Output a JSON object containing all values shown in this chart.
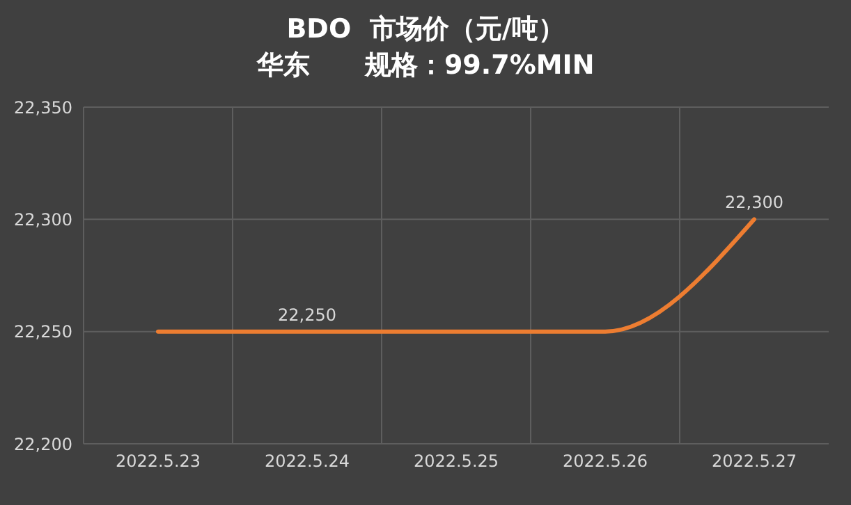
{
  "chart_data": {
    "type": "line",
    "title": "BDO  市场价（元/吨）",
    "subtitle": "华东      规格：99.7%MIN",
    "categories": [
      "2022.5.23",
      "2022.5.24",
      "2022.5.25",
      "2022.5.26",
      "2022.5.27"
    ],
    "series": [
      {
        "color": "#ed7d31",
        "values": [
          22250,
          22250,
          22250,
          22250,
          22300
        ],
        "value_labels": [
          null,
          "22,250",
          null,
          null,
          "22,300"
        ]
      }
    ],
    "ylim": [
      22200,
      22350
    ],
    "yticks": [
      {
        "value": 22200,
        "label": "22,200"
      },
      {
        "value": 22250,
        "label": "22,250"
      },
      {
        "value": 22300,
        "label": "22,300"
      },
      {
        "value": 22350,
        "label": "22,350"
      }
    ],
    "grid": true,
    "marker": "none",
    "line_style": "solid"
  }
}
